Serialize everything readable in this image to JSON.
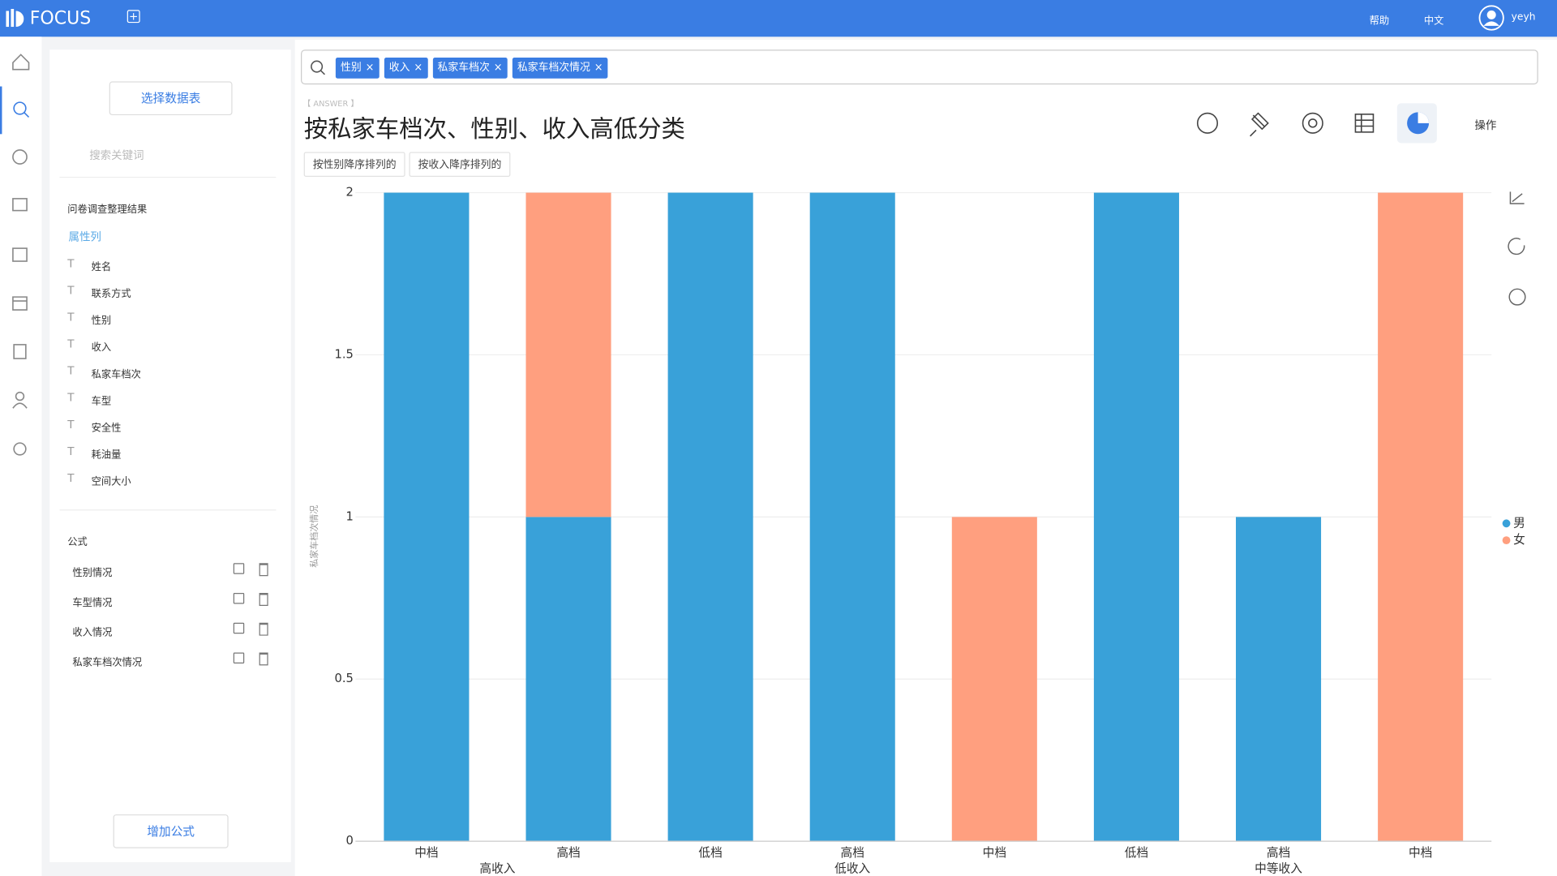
{
  "header": {
    "logo": "FOCUS",
    "help": "帮助",
    "language": "中文",
    "user": "yeyh"
  },
  "sidebar": {
    "select_table": "选择数据表",
    "search_placeholder": "搜索关键词",
    "dataset": "问卷调查整理结果",
    "attributes_title": "属性列",
    "attributes": [
      "姓名",
      "联系方式",
      "性别",
      "收入",
      "私家车档次",
      "车型",
      "安全性",
      "耗油量",
      "空间大小"
    ],
    "formulas_title": "公式",
    "formulas": [
      "性别情况",
      "车型情况",
      "收入情况",
      "私家车档次情况"
    ],
    "add_formula": "增加公式"
  },
  "search": {
    "tokens": [
      "性别",
      "收入",
      "私家车档次",
      "私家车档次情况"
    ]
  },
  "answer": {
    "tag": "【 ANSWER 】",
    "title": "按私家车档次、性别、收入高低分类",
    "sorts": [
      "按性别降序排列的",
      "按收入降序排列的"
    ],
    "operations": "操作"
  },
  "chart_data": {
    "type": "bar",
    "stacked": true,
    "y_label": "私家车档次情况",
    "groups": [
      {
        "name": "高收入",
        "categories": [
          "中档",
          "高档"
        ]
      },
      {
        "name": "低收入",
        "categories": [
          "低档",
          "高档",
          "中档"
        ]
      },
      {
        "name": "中等收入",
        "categories": [
          "低档",
          "高档",
          "中档"
        ]
      }
    ],
    "series": [
      {
        "name": "男",
        "color": "#39a1d9",
        "values": [
          2,
          1,
          2,
          2,
          0,
          2,
          1,
          0
        ]
      },
      {
        "name": "女",
        "color": "#ff9f7f",
        "values": [
          0,
          1,
          0,
          0,
          1,
          0,
          0,
          2
        ]
      }
    ],
    "ylim": [
      0,
      2
    ],
    "yticks": [
      0,
      0.5,
      1,
      1.5,
      2
    ],
    "grid": true,
    "legend": "right"
  }
}
